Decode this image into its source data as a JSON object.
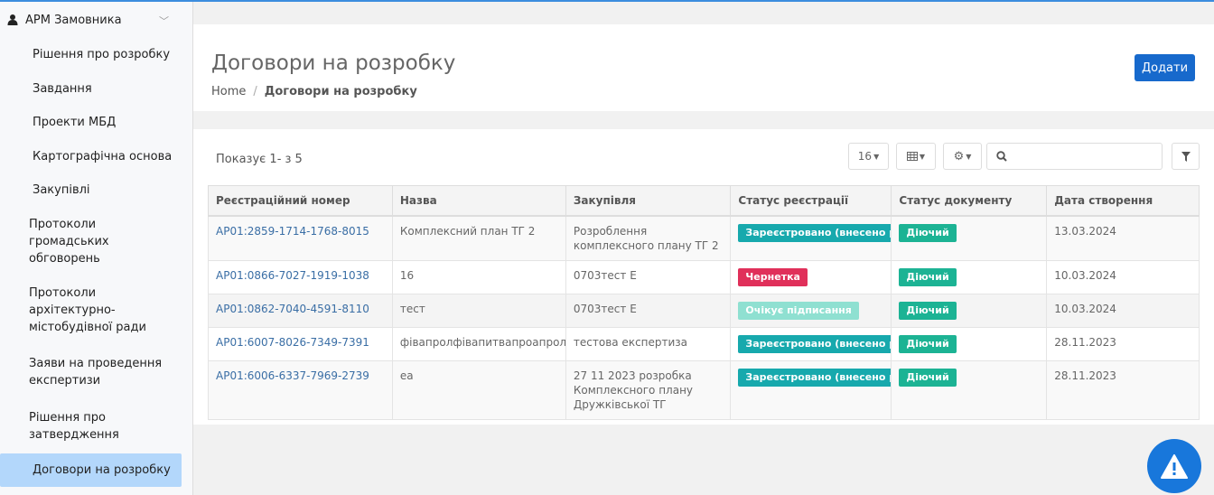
{
  "sidebar": {
    "section": "АРМ Замовника",
    "items": [
      {
        "label": "Рішення про розробку",
        "lines": 1
      },
      {
        "label": "Завдання",
        "lines": 1
      },
      {
        "label": "Проекти МБД",
        "lines": 1
      },
      {
        "label": "Картографічна основа",
        "lines": 1
      },
      {
        "label": "Закупівлі",
        "lines": 1
      },
      {
        "label": "Протоколи громадських обговорень",
        "lines": 3
      },
      {
        "label": "Протоколи архітектурно-містобудівної ради",
        "lines": 3
      },
      {
        "label": "Заяви на проведення експертизи",
        "lines": 2
      },
      {
        "label": "Рішення про затвердження",
        "lines": 2
      },
      {
        "label": "Договори на розробку",
        "lines": 1,
        "active": true
      }
    ]
  },
  "header": {
    "title": "Договори на розробку",
    "breadcrumb": [
      "Home",
      "Договори на розробку"
    ],
    "add_label": "Додати"
  },
  "toolbar": {
    "showing": "Показує 1- з 5",
    "page_size": "16",
    "search_value": ""
  },
  "table": {
    "columns": [
      "Реєстраційний номер",
      "Назва",
      "Закупівля",
      "Статус реєстрації",
      "Статус документу",
      "Дата створення"
    ],
    "rows": [
      {
        "reg": "АР01:2859-1714-1768-8015",
        "name": "Комплексний план ТГ 2",
        "purchase": "Розроблення комплексного плану ТГ 2",
        "reg_status": "Зареєстровано (внесено реєстру)",
        "status_type": "reg",
        "doc_status": "Діючий",
        "date": "13.03.2024"
      },
      {
        "reg": "АР01:0866-7027-1919-1038",
        "name": "16",
        "purchase": "0703тест Е",
        "reg_status": "Чернетка",
        "status_type": "draft",
        "doc_status": "Діючий",
        "date": "10.03.2024"
      },
      {
        "reg": "АР01:0862-7040-4591-8110",
        "name": "тест",
        "purchase": "0703тест Е",
        "reg_status": "Очікує підписання",
        "status_type": "wait",
        "doc_status": "Діючий",
        "date": "10.03.2024"
      },
      {
        "reg": "АР01:6007-8026-7349-7391",
        "name": "фівапролфівапитвапроапролпролпрол",
        "purchase": "тестова експертиза",
        "reg_status": "Зареєстровано (внесено реєстру)",
        "status_type": "reg",
        "doc_status": "Діючий",
        "date": "28.11.2023"
      },
      {
        "reg": "АР01:6006-6337-7969-2739",
        "name": "еа",
        "purchase": "27 11 2023 розробка Комплексного плану Дружківської ТГ",
        "reg_status": "Зареєстровано (внесено реєстру)",
        "status_type": "reg",
        "doc_status": "Діючий",
        "date": "28.11.2023"
      }
    ]
  },
  "colors": {
    "accent": "#1769cc",
    "registered": "#17a9ad",
    "draft": "#e0305a",
    "waiting": "#8fe0d1",
    "active": "#1cb394"
  }
}
